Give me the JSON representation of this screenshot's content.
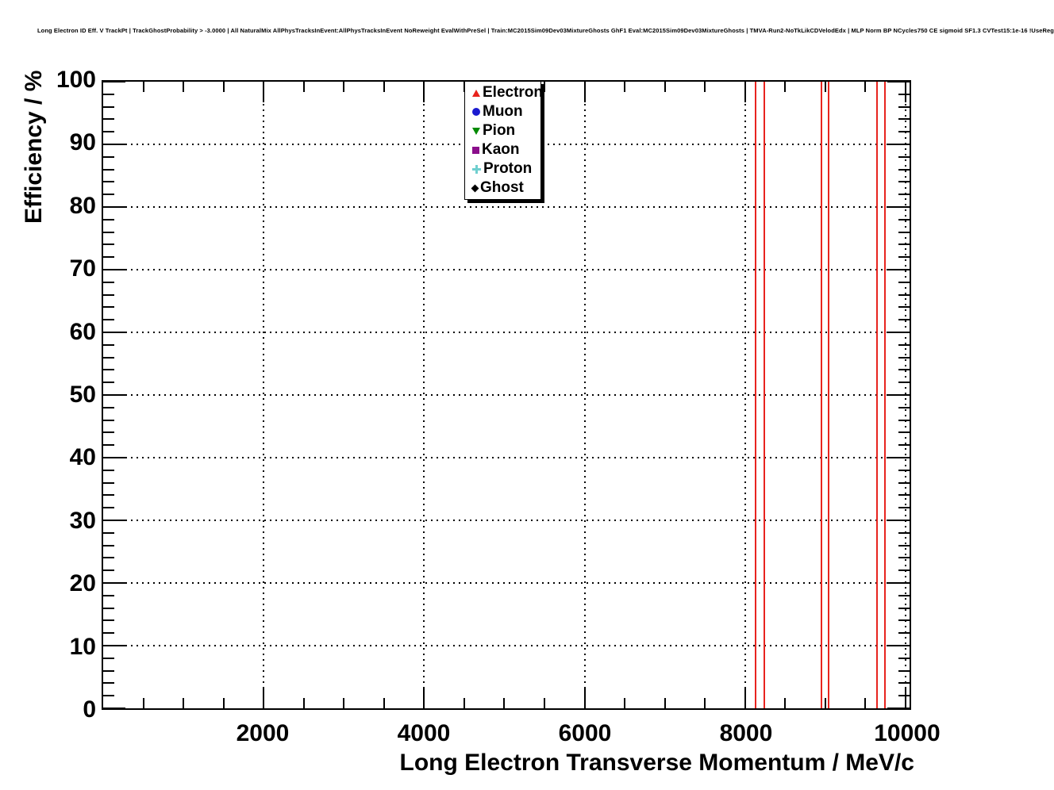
{
  "header": {
    "title": "Long Electron ID Eff. V TrackPt | TrackGhostProbability > -3.0000 | All NaturalMix AllPhysTracksInEvent:AllPhysTracksInEvent NoReweight EvalWithPreSel | Train:MC2015Sim09Dev03MixtureGhosts GhF1 Eval:MC2015Sim09Dev03MixtureGhosts | TMVA-Run2-NoTkLikCDVelodEdx | MLP Norm BP NCycles750 CE sigmoid SF1.3 CVTest15:1e-16 !UseReg"
  },
  "chart_data": {
    "type": "scatter",
    "title": "Long Electron ID Eff. V TrackPt | TrackGhostProbability > -3.0000 | All NaturalMix AllPhysTracksInEvent:AllPhysTracksInEvent NoReweight EvalWithPreSel | Train:MC2015Sim09Dev03MixtureGhosts GhF1 Eval:MC2015Sim09Dev03MixtureGhosts | TMVA-Run2-NoTkLikCDVelodEdx | MLP Norm BP NCycles750 CE sigmoid SF1.3 CVTest15:1e-16 !UseReg",
    "xlabel": "Long Electron Transverse Momentum / MeV/c",
    "ylabel": "Efficiency / %",
    "xlim": [
      0,
      10050
    ],
    "ylim": [
      0,
      100
    ],
    "x_major_ticks": [
      2000,
      4000,
      6000,
      8000,
      10000
    ],
    "x_tick_labels": [
      "2000",
      "4000",
      "6000",
      "8000",
      "10000"
    ],
    "x_minor_step": 500,
    "y_major_ticks": [
      0,
      10,
      20,
      30,
      40,
      50,
      60,
      70,
      80,
      90,
      100
    ],
    "y_tick_labels": [
      "0",
      "10",
      "20",
      "30",
      "40",
      "50",
      "60",
      "70",
      "80",
      "90",
      "100"
    ],
    "y_minor_step": 2,
    "grid": {
      "style": "dotted",
      "color": "#000000",
      "x_lines": [
        2000,
        4000,
        6000,
        8000,
        10000
      ],
      "y_lines": [
        10,
        20,
        30,
        40,
        50,
        60,
        70,
        80,
        90
      ]
    },
    "frame_color": "#000000",
    "legend": {
      "position": "top-center-right",
      "entries": [
        {
          "label": "Electron",
          "marker": "triangle-up",
          "color": "#e8221c"
        },
        {
          "label": "Muon",
          "marker": "circle",
          "color": "#1b1bd0"
        },
        {
          "label": "Pion",
          "marker": "triangle-down",
          "color": "#028a02"
        },
        {
          "label": "Kaon",
          "marker": "square",
          "color": "#8b0e8b"
        },
        {
          "label": "Proton",
          "marker": "plus",
          "color": "#6fcfcf"
        },
        {
          "label": "Ghost",
          "marker": "diamond",
          "color": "#000000"
        }
      ]
    },
    "visible_marks": {
      "description": "six full-height vertical red lines (electron efficiency error bars spanning the full y range)",
      "series_name": "Electron",
      "color": "#e8241f",
      "x_values": [
        8130,
        8240,
        8950,
        9040,
        9640,
        9740
      ],
      "y_span": [
        0,
        100
      ]
    }
  }
}
